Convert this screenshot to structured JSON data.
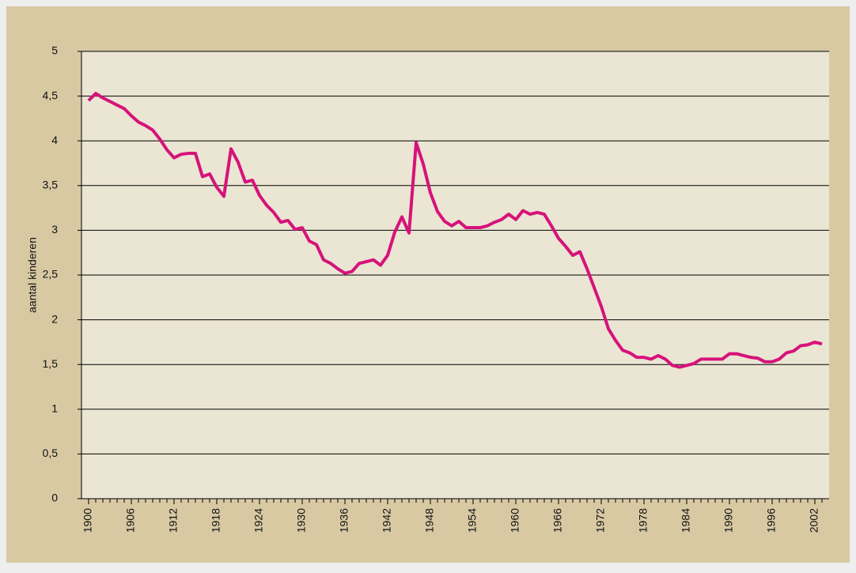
{
  "chart_data": {
    "type": "line",
    "y_label": "aantal  kinderen",
    "x": [
      1900,
      1901,
      1902,
      1903,
      1904,
      1905,
      1906,
      1907,
      1908,
      1909,
      1910,
      1911,
      1912,
      1913,
      1914,
      1915,
      1916,
      1917,
      1918,
      1919,
      1920,
      1921,
      1922,
      1923,
      1924,
      1925,
      1926,
      1927,
      1928,
      1929,
      1930,
      1931,
      1932,
      1933,
      1934,
      1935,
      1936,
      1937,
      1938,
      1939,
      1940,
      1941,
      1942,
      1943,
      1944,
      1945,
      1946,
      1947,
      1948,
      1949,
      1950,
      1951,
      1952,
      1953,
      1954,
      1955,
      1956,
      1957,
      1958,
      1959,
      1960,
      1961,
      1962,
      1963,
      1964,
      1965,
      1966,
      1967,
      1968,
      1969,
      1970,
      1971,
      1972,
      1973,
      1974,
      1975,
      1976,
      1977,
      1978,
      1979,
      1980,
      1981,
      1982,
      1983,
      1984,
      1985,
      1986,
      1987,
      1988,
      1989,
      1990,
      1991,
      1992,
      1993,
      1994,
      1995,
      1996,
      1997,
      1998,
      1999,
      2000,
      2001,
      2002,
      2003
    ],
    "series": [
      {
        "color": "#d6137a",
        "values": [
          4.45,
          4.53,
          4.48,
          4.44,
          4.4,
          4.36,
          4.28,
          4.21,
          4.17,
          4.12,
          4.02,
          3.9,
          3.81,
          3.85,
          3.86,
          3.86,
          3.6,
          3.63,
          3.48,
          3.38,
          3.91,
          3.76,
          3.54,
          3.56,
          3.39,
          3.28,
          3.2,
          3.09,
          3.11,
          3.01,
          3.03,
          2.88,
          2.84,
          2.67,
          2.63,
          2.57,
          2.52,
          2.54,
          2.63,
          2.65,
          2.67,
          2.61,
          2.72,
          2.98,
          3.15,
          2.97,
          3.98,
          3.74,
          3.42,
          3.21,
          3.1,
          3.05,
          3.1,
          3.03,
          3.03,
          3.03,
          3.05,
          3.09,
          3.12,
          3.18,
          3.12,
          3.22,
          3.18,
          3.2,
          3.18,
          3.05,
          2.91,
          2.82,
          2.72,
          2.76,
          2.57,
          2.36,
          2.15,
          1.9,
          1.77,
          1.66,
          1.63,
          1.58,
          1.58,
          1.56,
          1.6,
          1.56,
          1.49,
          1.47,
          1.49,
          1.51,
          1.56,
          1.56,
          1.56,
          1.56,
          1.62,
          1.62,
          1.6,
          1.58,
          1.57,
          1.53,
          1.53,
          1.56,
          1.63,
          1.65,
          1.71,
          1.72,
          1.75,
          1.73
        ]
      }
    ],
    "xlim": [
      1899,
      2004
    ],
    "xticks": [
      1900,
      1906,
      1912,
      1918,
      1924,
      1930,
      1936,
      1942,
      1948,
      1954,
      1960,
      1966,
      1972,
      1978,
      1984,
      1990,
      1996,
      2002
    ],
    "ylim": [
      0,
      5
    ],
    "yticks": [
      0,
      {
        "value": 0.5,
        "label": "0,5"
      },
      1,
      {
        "value": 1.5,
        "label": "1,5"
      },
      2,
      {
        "value": 2.5,
        "label": "2,5"
      },
      3,
      {
        "value": 3.5,
        "label": "3,5"
      },
      4,
      {
        "value": 4.5,
        "label": "4,5"
      },
      5
    ],
    "grid": true
  }
}
